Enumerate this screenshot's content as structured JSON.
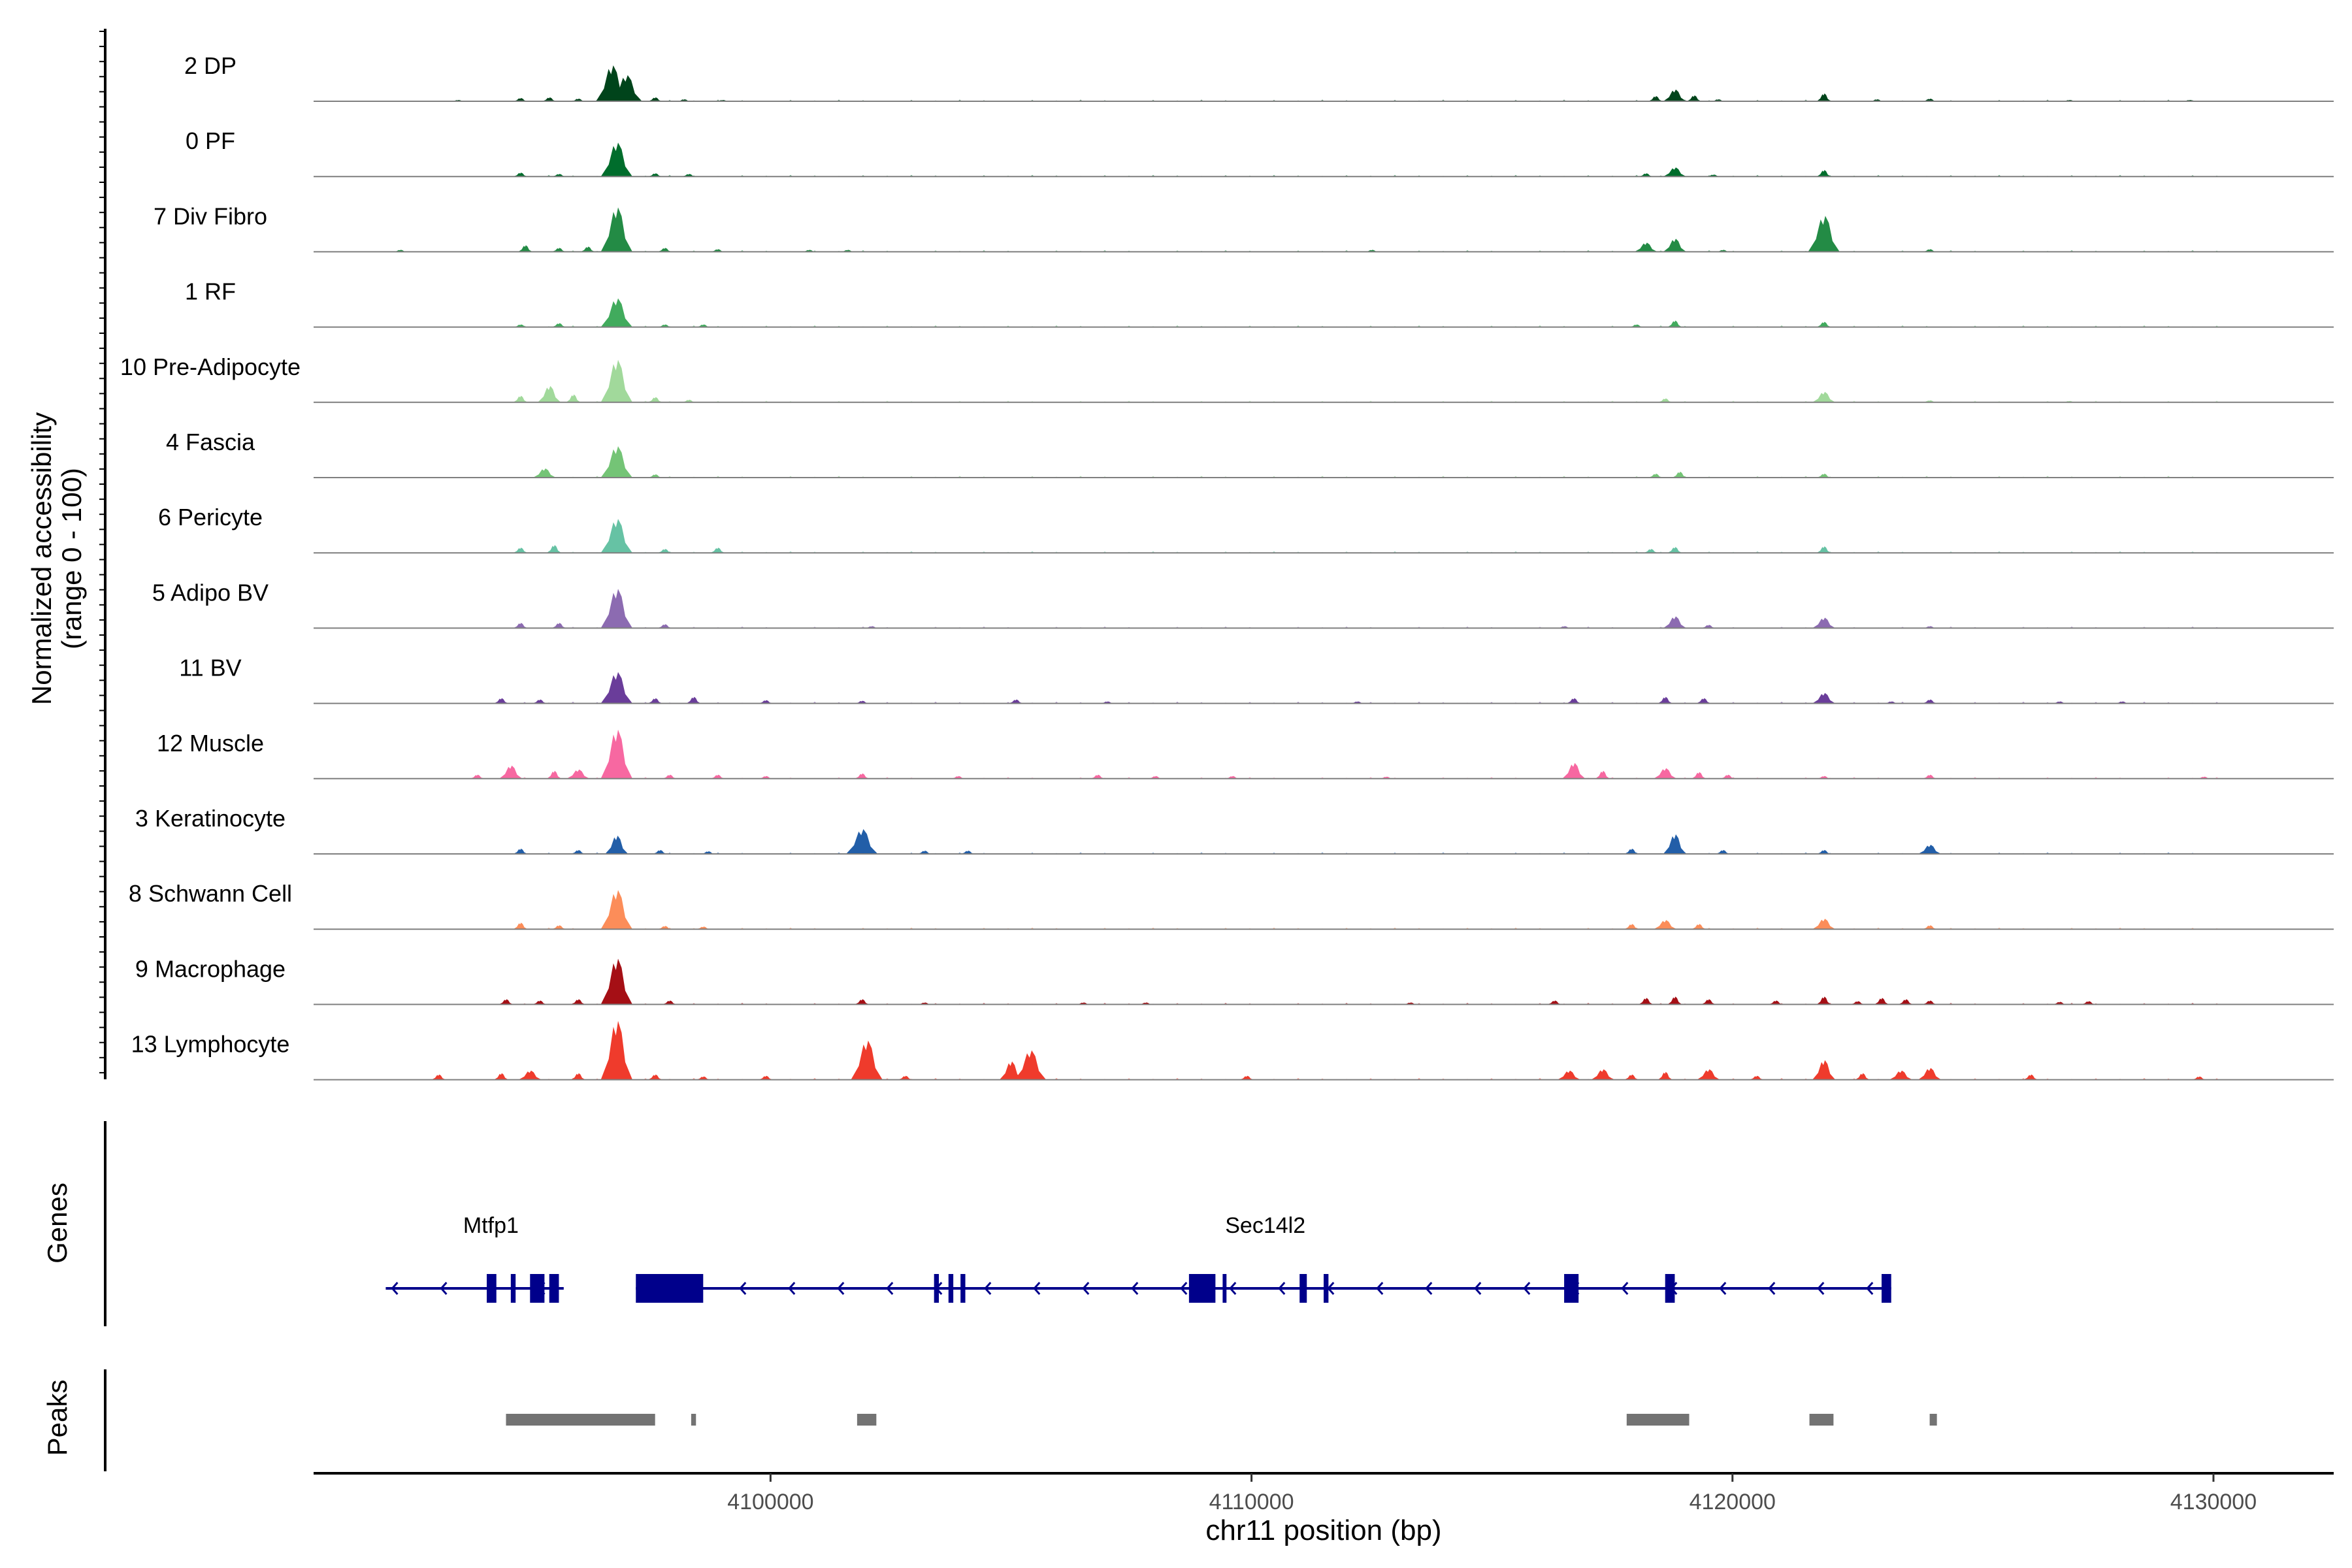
{
  "chart_data": {
    "type": "area",
    "title": "",
    "region": {
      "chrom": "chr11",
      "start": 4090500,
      "end": 4132500
    },
    "ylabel_line1": "Normalized accessibility",
    "ylabel_line2": "(range 0 - 100)",
    "xlabel": "chr11 position (bp)",
    "ylim": [
      0,
      100
    ],
    "x_ticks": [
      {
        "value": 4100000,
        "label": "4100000"
      },
      {
        "value": 4110000,
        "label": "4110000"
      },
      {
        "value": 4120000,
        "label": "4120000"
      },
      {
        "value": 4130000,
        "label": "4130000"
      }
    ],
    "tracks": [
      {
        "name": "2 DP",
        "color": "#00441b",
        "peaks": [
          [
            4093500,
            2
          ],
          [
            4094800,
            5
          ],
          [
            4095400,
            6
          ],
          [
            4096000,
            4
          ],
          [
            4096700,
            55
          ],
          [
            4097000,
            40
          ],
          [
            4097600,
            6
          ],
          [
            4098200,
            3
          ],
          [
            4099000,
            2
          ],
          [
            4118400,
            8
          ],
          [
            4118800,
            18
          ],
          [
            4119200,
            9
          ],
          [
            4119700,
            3
          ],
          [
            4121900,
            12
          ],
          [
            4123000,
            3
          ],
          [
            4124100,
            4
          ],
          [
            4127000,
            2
          ],
          [
            4129500,
            2
          ]
        ]
      },
      {
        "name": "0 PF",
        "color": "#006d2c",
        "peaks": [
          [
            4094800,
            6
          ],
          [
            4095600,
            4
          ],
          [
            4096800,
            52
          ],
          [
            4097600,
            5
          ],
          [
            4098300,
            4
          ],
          [
            4118200,
            5
          ],
          [
            4118800,
            14
          ],
          [
            4119600,
            3
          ],
          [
            4121900,
            10
          ]
        ]
      },
      {
        "name": "7 Div Fibro",
        "color": "#238b45",
        "peaks": [
          [
            4092300,
            3
          ],
          [
            4094900,
            10
          ],
          [
            4095600,
            6
          ],
          [
            4096200,
            8
          ],
          [
            4096800,
            68
          ],
          [
            4097800,
            6
          ],
          [
            4098900,
            4
          ],
          [
            4100800,
            3
          ],
          [
            4101600,
            3
          ],
          [
            4112500,
            3
          ],
          [
            4118200,
            14
          ],
          [
            4118800,
            20
          ],
          [
            4119800,
            3
          ],
          [
            4121900,
            55
          ],
          [
            4124100,
            4
          ]
        ]
      },
      {
        "name": "1 RF",
        "color": "#41ab5d",
        "peaks": [
          [
            4094800,
            4
          ],
          [
            4095600,
            6
          ],
          [
            4096800,
            44
          ],
          [
            4097800,
            4
          ],
          [
            4098600,
            4
          ],
          [
            4118000,
            4
          ],
          [
            4118800,
            10
          ],
          [
            4121900,
            8
          ]
        ]
      },
      {
        "name": "10 Pre-Adipocyte",
        "color": "#a1d99b",
        "peaks": [
          [
            4094800,
            10
          ],
          [
            4095400,
            25
          ],
          [
            4095900,
            12
          ],
          [
            4096800,
            65
          ],
          [
            4097600,
            8
          ],
          [
            4098300,
            4
          ],
          [
            4118600,
            6
          ],
          [
            4121900,
            16
          ],
          [
            4124100,
            3
          ],
          [
            4127000,
            2
          ]
        ]
      },
      {
        "name": "4 Fascia",
        "color": "#74c476",
        "peaks": [
          [
            4095300,
            14
          ],
          [
            4096800,
            48
          ],
          [
            4097600,
            5
          ],
          [
            4118400,
            6
          ],
          [
            4118900,
            9
          ],
          [
            4121900,
            6
          ]
        ]
      },
      {
        "name": "6 Pericyte",
        "color": "#66c2a4",
        "peaks": [
          [
            4094800,
            8
          ],
          [
            4095500,
            12
          ],
          [
            4096800,
            52
          ],
          [
            4097800,
            6
          ],
          [
            4098900,
            8
          ],
          [
            4118300,
            6
          ],
          [
            4118800,
            9
          ],
          [
            4121900,
            10
          ]
        ]
      },
      {
        "name": "5 Adipo BV",
        "color": "#8c6bb1",
        "peaks": [
          [
            4094800,
            8
          ],
          [
            4095600,
            8
          ],
          [
            4096800,
            60
          ],
          [
            4097800,
            6
          ],
          [
            4102100,
            3
          ],
          [
            4116500,
            3
          ],
          [
            4118800,
            18
          ],
          [
            4119500,
            5
          ],
          [
            4121900,
            16
          ],
          [
            4124100,
            3
          ]
        ]
      },
      {
        "name": "11 BV",
        "color": "#6a3d9a",
        "peaks": [
          [
            4094400,
            8
          ],
          [
            4095200,
            6
          ],
          [
            4096800,
            48
          ],
          [
            4097600,
            8
          ],
          [
            4098400,
            10
          ],
          [
            4099900,
            5
          ],
          [
            4101900,
            4
          ],
          [
            4105100,
            6
          ],
          [
            4107000,
            3
          ],
          [
            4112200,
            3
          ],
          [
            4116700,
            8
          ],
          [
            4118600,
            10
          ],
          [
            4119400,
            8
          ],
          [
            4121900,
            16
          ],
          [
            4123300,
            3
          ],
          [
            4124100,
            6
          ],
          [
            4126800,
            3
          ],
          [
            4128100,
            3
          ]
        ]
      },
      {
        "name": "12 Muscle",
        "color": "#f768a1",
        "peaks": [
          [
            4093900,
            6
          ],
          [
            4094600,
            20
          ],
          [
            4095500,
            12
          ],
          [
            4096000,
            14
          ],
          [
            4096800,
            75
          ],
          [
            4097900,
            6
          ],
          [
            4098900,
            6
          ],
          [
            4099900,
            4
          ],
          [
            4101900,
            8
          ],
          [
            4103900,
            4
          ],
          [
            4106800,
            6
          ],
          [
            4108000,
            4
          ],
          [
            4109600,
            4
          ],
          [
            4112800,
            3
          ],
          [
            4116700,
            24
          ],
          [
            4117300,
            12
          ],
          [
            4118600,
            16
          ],
          [
            4119300,
            10
          ],
          [
            4119900,
            6
          ],
          [
            4121900,
            4
          ],
          [
            4124100,
            6
          ],
          [
            4129800,
            3
          ]
        ]
      },
      {
        "name": "3 Keratinocyte",
        "color": "#225ea8",
        "peaks": [
          [
            4094800,
            8
          ],
          [
            4096000,
            6
          ],
          [
            4096800,
            28
          ],
          [
            4097700,
            6
          ],
          [
            4098700,
            4
          ],
          [
            4101900,
            38
          ],
          [
            4103200,
            5
          ],
          [
            4104100,
            5
          ],
          [
            4117900,
            8
          ],
          [
            4118800,
            30
          ],
          [
            4119800,
            6
          ],
          [
            4121900,
            6
          ],
          [
            4124100,
            14
          ]
        ]
      },
      {
        "name": "8 Schwann Cell",
        "color": "#fc8d59",
        "peaks": [
          [
            4094800,
            10
          ],
          [
            4095600,
            6
          ],
          [
            4096800,
            60
          ],
          [
            4097800,
            5
          ],
          [
            4098600,
            4
          ],
          [
            4117900,
            8
          ],
          [
            4118600,
            14
          ],
          [
            4119300,
            8
          ],
          [
            4121900,
            16
          ],
          [
            4124100,
            6
          ]
        ]
      },
      {
        "name": "9 Macrophage",
        "color": "#a50f15",
        "peaks": [
          [
            4094500,
            8
          ],
          [
            4095200,
            6
          ],
          [
            4096000,
            8
          ],
          [
            4096800,
            70
          ],
          [
            4097900,
            6
          ],
          [
            4101900,
            8
          ],
          [
            4103200,
            3
          ],
          [
            4106500,
            3
          ],
          [
            4107800,
            3
          ],
          [
            4113300,
            3
          ],
          [
            4116300,
            6
          ],
          [
            4118200,
            10
          ],
          [
            4118800,
            12
          ],
          [
            4119500,
            8
          ],
          [
            4120900,
            6
          ],
          [
            4121900,
            12
          ],
          [
            4122600,
            5
          ],
          [
            4123100,
            10
          ],
          [
            4123600,
            8
          ],
          [
            4124100,
            6
          ],
          [
            4126800,
            4
          ],
          [
            4127400,
            5
          ]
        ]
      },
      {
        "name": "13 Lymphocyte",
        "color": "#ef3b2c",
        "peaks": [
          [
            4093100,
            8
          ],
          [
            4094400,
            10
          ],
          [
            4095000,
            14
          ],
          [
            4096000,
            10
          ],
          [
            4096800,
            90
          ],
          [
            4097600,
            8
          ],
          [
            4098600,
            5
          ],
          [
            4099900,
            6
          ],
          [
            4102000,
            60
          ],
          [
            4102800,
            6
          ],
          [
            4105000,
            28
          ],
          [
            4105400,
            45
          ],
          [
            4109900,
            6
          ],
          [
            4116600,
            14
          ],
          [
            4117300,
            16
          ],
          [
            4117900,
            8
          ],
          [
            4118600,
            12
          ],
          [
            4119500,
            16
          ],
          [
            4120500,
            6
          ],
          [
            4121900,
            30
          ],
          [
            4122700,
            10
          ],
          [
            4123500,
            14
          ],
          [
            4124100,
            18
          ],
          [
            4126200,
            8
          ],
          [
            4129700,
            5
          ]
        ]
      }
    ],
    "genes": [
      {
        "name": "Mtfp1",
        "label_pos": 4093100,
        "start": 4092000,
        "end": 4095700,
        "strand": "-",
        "exons": [
          [
            4094100,
            4094300
          ],
          [
            4094600,
            4094700
          ],
          [
            4095000,
            4095300
          ],
          [
            4095400,
            4095600
          ]
        ]
      },
      {
        "name": "Sec14l2",
        "label_pos": 4109200,
        "start": 4097200,
        "end": 4123300,
        "strand": "-",
        "exons": [
          [
            4097200,
            4098600
          ],
          [
            4103400,
            4103500
          ],
          [
            4103700,
            4103800
          ],
          [
            4103950,
            4104050
          ],
          [
            4108700,
            4109250
          ],
          [
            4109400,
            4109480
          ],
          [
            4111000,
            4111150
          ],
          [
            4111500,
            4111600
          ],
          [
            4116500,
            4116800
          ],
          [
            4118600,
            4118800
          ],
          [
            4123100,
            4123300
          ]
        ]
      }
    ],
    "peak_regions": [
      [
        4094500,
        4097600
      ],
      [
        4098350,
        4098450
      ],
      [
        4101800,
        4102200
      ],
      [
        4117800,
        4119100
      ],
      [
        4121600,
        4122100
      ],
      [
        4124100,
        4124250
      ]
    ],
    "panel_labels": {
      "genes": "Genes",
      "peaks": "Peaks"
    }
  }
}
